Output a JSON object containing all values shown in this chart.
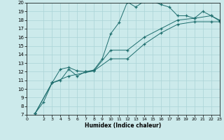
{
  "xlabel": "Humidex (Indice chaleur)",
  "background_color": "#cceaeb",
  "grid_color": "#aad4d6",
  "line_color": "#1e6e6e",
  "xlim": [
    0,
    23
  ],
  "ylim": [
    7,
    20
  ],
  "xticks": [
    0,
    2,
    3,
    4,
    5,
    6,
    7,
    8,
    9,
    10,
    11,
    12,
    13,
    14,
    15,
    16,
    17,
    18,
    19,
    20,
    21,
    22,
    23
  ],
  "yticks": [
    7,
    8,
    9,
    10,
    11,
    12,
    13,
    14,
    15,
    16,
    17,
    18,
    19,
    20
  ],
  "line1_x": [
    1,
    2,
    3,
    4,
    5,
    6,
    7,
    8,
    9,
    10,
    11,
    12,
    13,
    14,
    15,
    16,
    17,
    18,
    19,
    20,
    21,
    22,
    23
  ],
  "line1_y": [
    7.2,
    8.5,
    10.7,
    12.3,
    12.5,
    12.1,
    12.0,
    12.2,
    13.5,
    16.4,
    17.7,
    20.1,
    19.5,
    20.2,
    20.2,
    19.8,
    19.5,
    18.5,
    18.5,
    18.2,
    19.0,
    18.5,
    18.0
  ],
  "line2_x": [
    1,
    3,
    4,
    5,
    6,
    7,
    8,
    10,
    12,
    14,
    16,
    18,
    20,
    22,
    23
  ],
  "line2_y": [
    7.2,
    10.7,
    11.0,
    12.3,
    11.5,
    12.0,
    12.1,
    14.5,
    14.5,
    16.0,
    17.0,
    18.0,
    18.2,
    18.5,
    17.9
  ],
  "line3_x": [
    1,
    3,
    5,
    8,
    10,
    12,
    14,
    16,
    18,
    20,
    22,
    23
  ],
  "line3_y": [
    7.2,
    10.7,
    11.5,
    12.1,
    13.5,
    13.5,
    15.2,
    16.5,
    17.5,
    17.8,
    17.8,
    17.8
  ]
}
